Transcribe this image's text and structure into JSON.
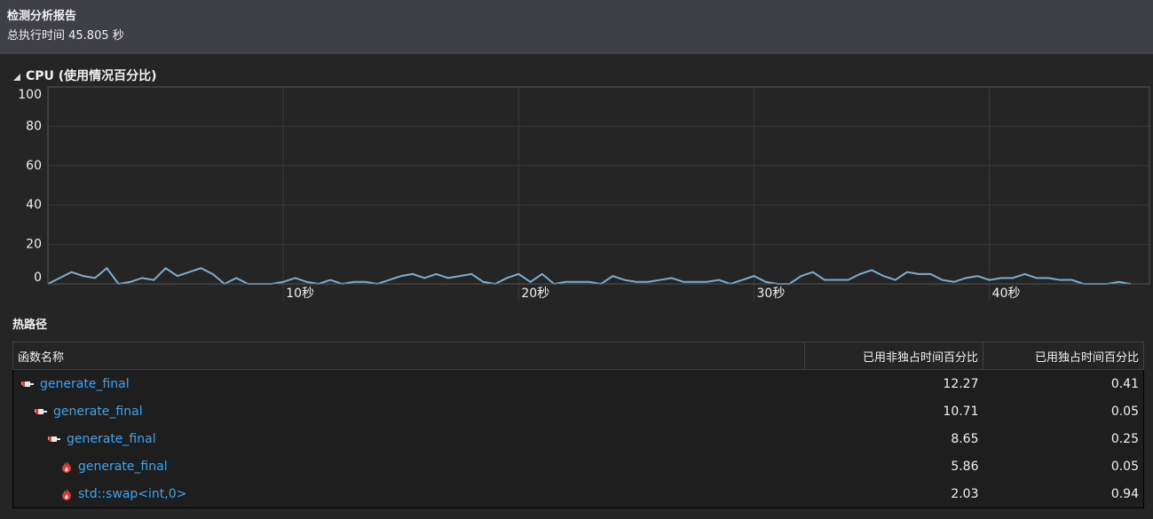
{
  "header": {
    "title": "检测分析报告",
    "subtitle": "总执行时间 45.805 秒"
  },
  "chart_data": {
    "type": "line",
    "title": "CPU (使用情况百分比)",
    "x": [
      0,
      0.5,
      1,
      1.5,
      2,
      2.5,
      3,
      3.5,
      4,
      4.5,
      5,
      5.5,
      6,
      6.5,
      7,
      7.5,
      8,
      8.5,
      9,
      9.5,
      10,
      10.5,
      11,
      11.5,
      12,
      12.5,
      13,
      13.5,
      14,
      14.5,
      15,
      15.5,
      16,
      16.5,
      17,
      17.5,
      18,
      18.5,
      19,
      19.5,
      20,
      20.5,
      21,
      21.5,
      22,
      22.5,
      23,
      23.5,
      24,
      24.5,
      25,
      25.5,
      26,
      26.5,
      27,
      27.5,
      28,
      28.5,
      29,
      29.5,
      30,
      30.5,
      31,
      31.5,
      32,
      32.5,
      33,
      33.5,
      34,
      34.5,
      35,
      35.5,
      36,
      36.5,
      37,
      37.5,
      38,
      38.5,
      39,
      39.5,
      40,
      40.5,
      41,
      41.5,
      42,
      42.5,
      43,
      43.5,
      44,
      44.5,
      45,
      45.5,
      46
    ],
    "series": [
      {
        "name": "CPU",
        "color": "#7aaed2",
        "values": [
          0,
          3,
          6,
          4,
          3,
          8,
          0,
          1,
          3,
          2,
          8,
          4,
          6,
          8,
          5,
          0,
          3,
          0,
          0,
          0,
          1,
          3,
          1,
          0,
          2,
          0,
          1,
          1,
          0,
          2,
          4,
          5,
          3,
          5,
          3,
          4,
          5,
          1,
          0,
          3,
          5,
          1,
          5,
          0,
          1,
          1,
          1,
          0,
          4,
          2,
          1,
          1,
          2,
          3,
          1,
          1,
          1,
          2,
          0,
          2,
          4,
          1,
          0,
          0,
          4,
          6,
          2,
          2,
          2,
          5,
          7,
          4,
          2,
          6,
          5,
          5,
          2,
          1,
          3,
          4,
          2,
          3,
          3,
          5,
          3,
          3,
          2,
          2,
          0,
          0,
          0,
          1,
          0
        ]
      }
    ],
    "xlim": [
      0,
      46.8
    ],
    "ylim": [
      0,
      100
    ],
    "xticks": [
      {
        "value": 10,
        "label": "10秒"
      },
      {
        "value": 20,
        "label": "20秒"
      },
      {
        "value": 30,
        "label": "30秒"
      },
      {
        "value": 40,
        "label": "40秒"
      }
    ],
    "yticks": [
      0,
      20,
      40,
      60,
      80,
      100
    ],
    "grid": true
  },
  "hot_path": {
    "title": "热路径",
    "table": {
      "columns": [
        "函数名称",
        "已用非独占时间百分比",
        "已用独占时间百分比"
      ],
      "rows": [
        [
          "generate_final",
          12.27,
          0.41
        ],
        [
          "generate_final",
          10.71,
          0.05
        ],
        [
          "generate_final",
          8.65,
          0.25
        ],
        [
          "generate_final",
          5.86,
          0.05
        ],
        [
          "std::swap<int,0>",
          2.03,
          0.94
        ]
      ]
    }
  }
}
